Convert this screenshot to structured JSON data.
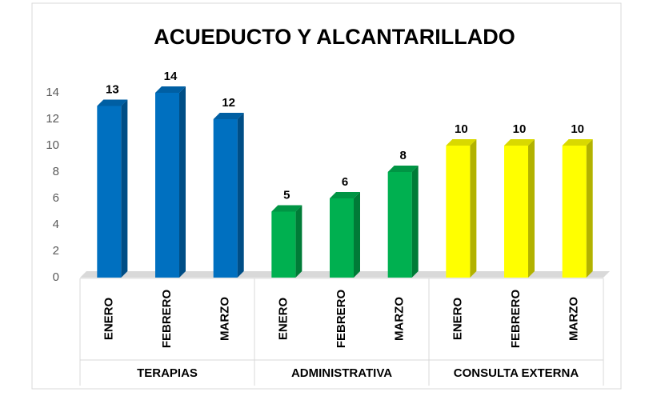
{
  "chart_data": {
    "type": "bar",
    "title": "ACUEDUCTO Y ALCANTARILLADO",
    "groups": [
      {
        "name": "TERAPIAS",
        "color": "#0070c0",
        "categories": [
          "ENERO",
          "FEBRERO",
          "MARZO"
        ],
        "values": [
          13,
          14,
          12
        ]
      },
      {
        "name": "ADMINISTRATIVA",
        "color": "#00b050",
        "categories": [
          "ENERO",
          "FEBRERO",
          "MARZO"
        ],
        "values": [
          5,
          6,
          8
        ]
      },
      {
        "name": "CONSULTA EXTERNA",
        "color": "#ffff00",
        "categories": [
          "ENERO",
          "FEBRERO",
          "MARZO"
        ],
        "values": [
          10,
          10,
          10
        ]
      }
    ],
    "ylim": [
      0,
      14
    ],
    "yticks": [
      0,
      2,
      4,
      6,
      8,
      10,
      12,
      14
    ]
  }
}
